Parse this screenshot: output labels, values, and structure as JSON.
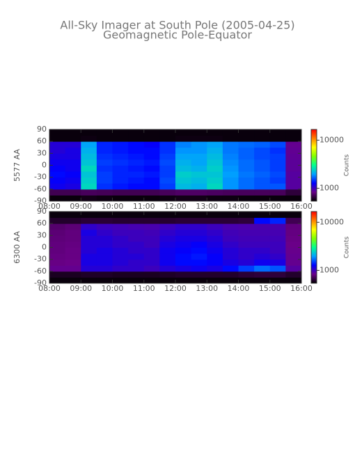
{
  "chart_data": [
    {
      "type": "heatmap",
      "title": "All-Sky Imager at South Pole (2005-04-25)",
      "subtitle": "Geomagnetic Pole-Equator",
      "ylabel": "5577 AA",
      "zlabel": "Counts",
      "x": [
        8.25,
        8.75,
        9.25,
        9.75,
        10.25,
        10.75,
        11.25,
        11.75,
        12.25,
        12.75,
        13.25,
        13.75,
        14.25,
        14.75,
        15.25,
        15.75
      ],
      "y": [
        -82.5,
        -67.5,
        -52.5,
        -37.5,
        -22.5,
        -7.5,
        7.5,
        22.5,
        37.5,
        52.5,
        67.5,
        82.5
      ],
      "z": [
        [
          560,
          560,
          580,
          570,
          560,
          560,
          560,
          570,
          580,
          580,
          570,
          570,
          560,
          560,
          560,
          560
        ],
        [
          700,
          700,
          720,
          710,
          700,
          700,
          700,
          720,
          740,
          740,
          730,
          720,
          720,
          720,
          720,
          650
        ],
        [
          1200,
          1150,
          2500,
          1450,
          1350,
          1300,
          1300,
          1500,
          2200,
          2100,
          2500,
          1900,
          1700,
          1600,
          1600,
          900
        ],
        [
          1250,
          1200,
          2400,
          1500,
          1400,
          1350,
          1300,
          1550,
          2300,
          2200,
          2400,
          1900,
          1700,
          1600,
          1500,
          900
        ],
        [
          1300,
          1250,
          2300,
          1500,
          1400,
          1400,
          1350,
          1500,
          2400,
          2300,
          2300,
          1950,
          1750,
          1650,
          1550,
          900
        ],
        [
          1250,
          1200,
          2500,
          1450,
          1400,
          1350,
          1300,
          1500,
          2200,
          2100,
          2400,
          1900,
          1700,
          1600,
          1500,
          880
        ],
        [
          1200,
          1200,
          2300,
          1500,
          1450,
          1400,
          1350,
          1550,
          2100,
          2000,
          2300,
          1850,
          1700,
          1600,
          1500,
          880
        ],
        [
          1150,
          1150,
          2200,
          1450,
          1400,
          1350,
          1300,
          1500,
          2000,
          2000,
          2200,
          1800,
          1650,
          1550,
          1500,
          870
        ],
        [
          1100,
          1150,
          2100,
          1400,
          1350,
          1300,
          1300,
          1450,
          1900,
          1900,
          2100,
          1750,
          1650,
          1550,
          1450,
          860
        ],
        [
          1100,
          1100,
          2000,
          1400,
          1350,
          1300,
          1250,
          1450,
          1800,
          1900,
          2000,
          1750,
          1700,
          1650,
          1550,
          850
        ],
        [
          560,
          560,
          570,
          560,
          560,
          560,
          560,
          560,
          570,
          570,
          570,
          560,
          560,
          560,
          560,
          560
        ],
        [
          560,
          560,
          560,
          560,
          560,
          560,
          560,
          560,
          560,
          560,
          560,
          560,
          560,
          560,
          560,
          560
        ]
      ],
      "xlim": [
        8,
        16
      ],
      "ylim": [
        -90,
        90
      ],
      "xticks": [
        {
          "value": 8,
          "label": "08:00"
        },
        {
          "value": 9,
          "label": "09:00"
        },
        {
          "value": 10,
          "label": "10:00"
        },
        {
          "value": 11,
          "label": "11:00"
        },
        {
          "value": 12,
          "label": "12:00"
        },
        {
          "value": 13,
          "label": "13:00"
        },
        {
          "value": 14,
          "label": "14:00"
        },
        {
          "value": 15,
          "label": "15:00"
        },
        {
          "value": 16,
          "label": "16:00"
        }
      ],
      "yticks": [
        -90,
        -60,
        -30,
        0,
        30,
        60,
        90
      ],
      "zlim": [
        540,
        16700
      ],
      "zticks": [
        1000,
        10000
      ],
      "zscale": "log",
      "colormap": [
        "#000000",
        "#6a0088",
        "#0000ff",
        "#00a0ff",
        "#00ff90",
        "#80ff00",
        "#ffff00",
        "#ff8000",
        "#ff0000"
      ]
    },
    {
      "type": "heatmap",
      "ylabel": "6300 AA",
      "zlabel": "Counts",
      "x": [
        8.25,
        8.75,
        9.25,
        9.75,
        10.25,
        10.75,
        11.25,
        11.75,
        12.25,
        12.75,
        13.25,
        13.75,
        14.25,
        14.75,
        15.25,
        15.75
      ],
      "y": [
        -82.5,
        -67.5,
        -52.5,
        -37.5,
        -22.5,
        -7.5,
        7.5,
        22.5,
        37.5,
        52.5,
        67.5,
        82.5
      ],
      "z": [
        [
          560,
          560,
          560,
          560,
          560,
          560,
          560,
          560,
          560,
          560,
          560,
          560,
          560,
          560,
          560,
          560
        ],
        [
          600,
          600,
          610,
          610,
          600,
          600,
          600,
          610,
          620,
          620,
          620,
          620,
          640,
          650,
          650,
          620
        ],
        [
          850,
          850,
          1100,
          1100,
          1050,
          1050,
          1000,
          1100,
          1150,
          1200,
          1150,
          1300,
          1500,
          1700,
          1600,
          900
        ],
        [
          820,
          830,
          1150,
          1150,
          1100,
          1050,
          1050,
          1200,
          1300,
          1300,
          1250,
          1150,
          1100,
          1200,
          1150,
          850
        ],
        [
          810,
          820,
          1150,
          1150,
          1100,
          1100,
          1050,
          1200,
          1300,
          1350,
          1250,
          1100,
          1050,
          1100,
          1050,
          850
        ],
        [
          800,
          820,
          1100,
          1150,
          1100,
          1050,
          1050,
          1200,
          1250,
          1300,
          1200,
          1100,
          1050,
          1050,
          1000,
          840
        ],
        [
          800,
          810,
          1100,
          1100,
          1050,
          1050,
          1000,
          1150,
          1200,
          1250,
          1150,
          1050,
          1000,
          1000,
          1000,
          830
        ],
        [
          790,
          800,
          1100,
          1100,
          1050,
          1000,
          1000,
          1100,
          1150,
          1150,
          1100,
          1000,
          980,
          980,
          980,
          820
        ],
        [
          780,
          800,
          1150,
          1050,
          1000,
          1000,
          980,
          1050,
          1100,
          1100,
          1050,
          980,
          960,
          960,
          960,
          810
        ],
        [
          760,
          780,
          1050,
          1000,
          980,
          960,
          950,
          1000,
          1050,
          1050,
          1000,
          950,
          940,
          950,
          950,
          800
        ],
        [
          620,
          620,
          640,
          640,
          630,
          630,
          630,
          630,
          640,
          640,
          640,
          640,
          650,
          1300,
          1400,
          700
        ],
        [
          560,
          560,
          560,
          560,
          560,
          560,
          560,
          560,
          560,
          560,
          560,
          560,
          560,
          560,
          560,
          560
        ]
      ],
      "xlim": [
        8,
        16
      ],
      "ylim": [
        -90,
        90
      ],
      "xticks": [
        {
          "value": 8,
          "label": "08:00"
        },
        {
          "value": 9,
          "label": "09:00"
        },
        {
          "value": 10,
          "label": "10:00"
        },
        {
          "value": 11,
          "label": "11:00"
        },
        {
          "value": 12,
          "label": "12:00"
        },
        {
          "value": 13,
          "label": "13:00"
        },
        {
          "value": 14,
          "label": "14:00"
        },
        {
          "value": 15,
          "label": "15:00"
        },
        {
          "value": 16,
          "label": "16:00"
        }
      ],
      "yticks": [
        -90,
        -60,
        -30,
        0,
        30,
        60,
        90
      ],
      "zlim": [
        540,
        16700
      ],
      "zticks": [
        1000,
        10000
      ],
      "zscale": "log",
      "colormap": [
        "#000000",
        "#6a0088",
        "#0000ff",
        "#00a0ff",
        "#00ff90",
        "#80ff00",
        "#ffff00",
        "#ff8000",
        "#ff0000"
      ]
    }
  ]
}
